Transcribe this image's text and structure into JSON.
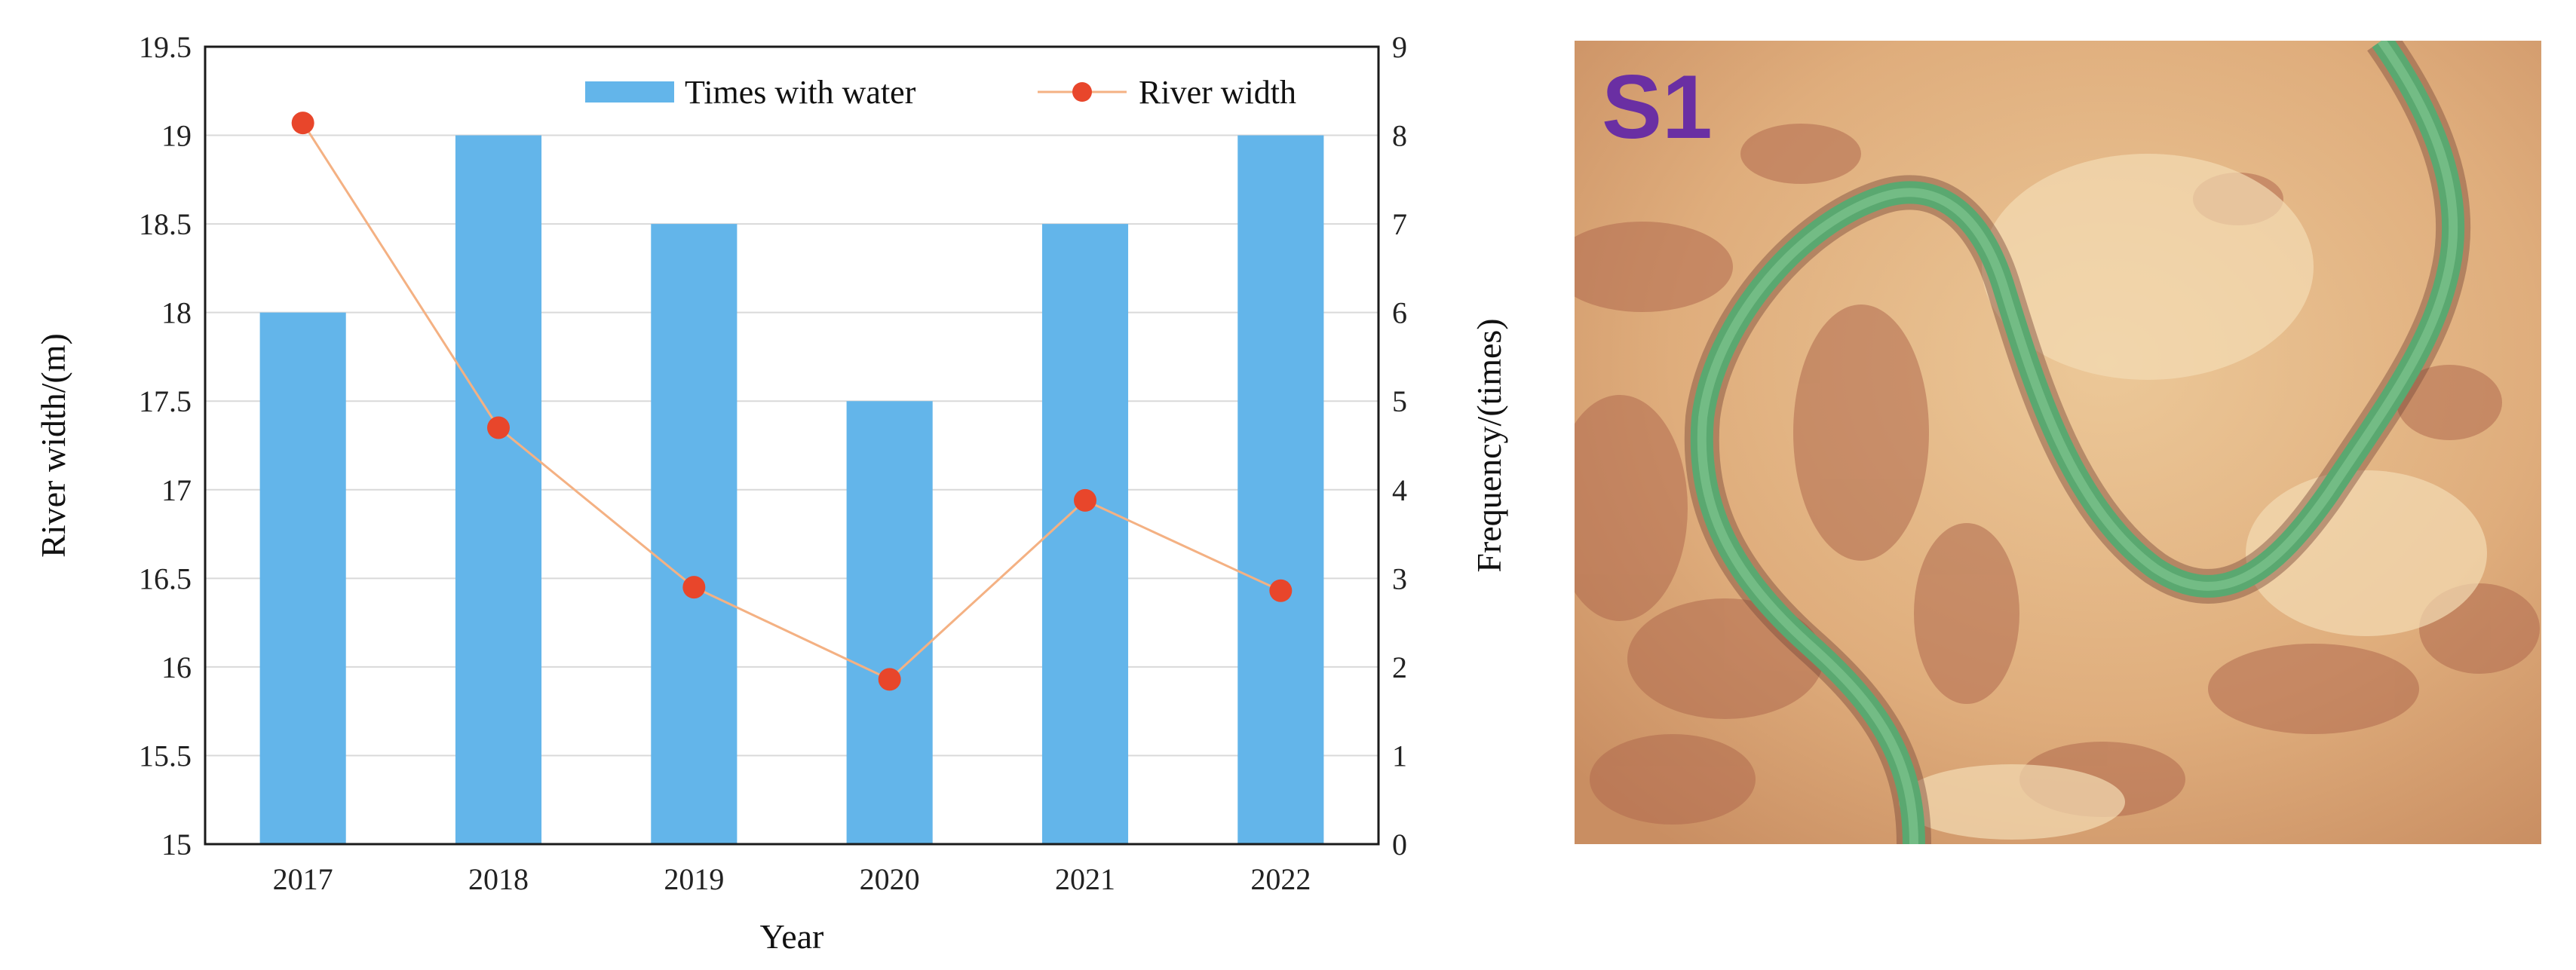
{
  "chart_data": {
    "type": "bar",
    "categories": [
      "2017",
      "2018",
      "2019",
      "2020",
      "2021",
      "2022"
    ],
    "xlabel": "Year",
    "ylabel_left": "River width/(m)",
    "ylabel_right": "Frequency/(times)",
    "ylim_left": [
      15,
      19.5
    ],
    "ylim_right": [
      0,
      9
    ],
    "yticks_left": [
      "15",
      "15.5",
      "16",
      "16.5",
      "17",
      "17.5",
      "18",
      "18.5",
      "19",
      "19.5"
    ],
    "yticks_right": [
      "0",
      "1",
      "2",
      "3",
      "4",
      "5",
      "6",
      "7",
      "8",
      "9"
    ],
    "grid": true,
    "legend_position": "top",
    "series": [
      {
        "name": "Times with water",
        "type": "bar",
        "axis": "right",
        "color": "#63b5ea",
        "values": [
          6,
          8,
          7,
          5,
          7,
          8
        ]
      },
      {
        "name": "River width",
        "type": "line",
        "axis": "left",
        "color": "#e8462b",
        "line_color": "#f4b183",
        "values": [
          19.07,
          17.35,
          16.45,
          15.93,
          16.94,
          16.43
        ]
      }
    ]
  },
  "map": {
    "label": "S1",
    "label_color": "#6a2fa3"
  }
}
